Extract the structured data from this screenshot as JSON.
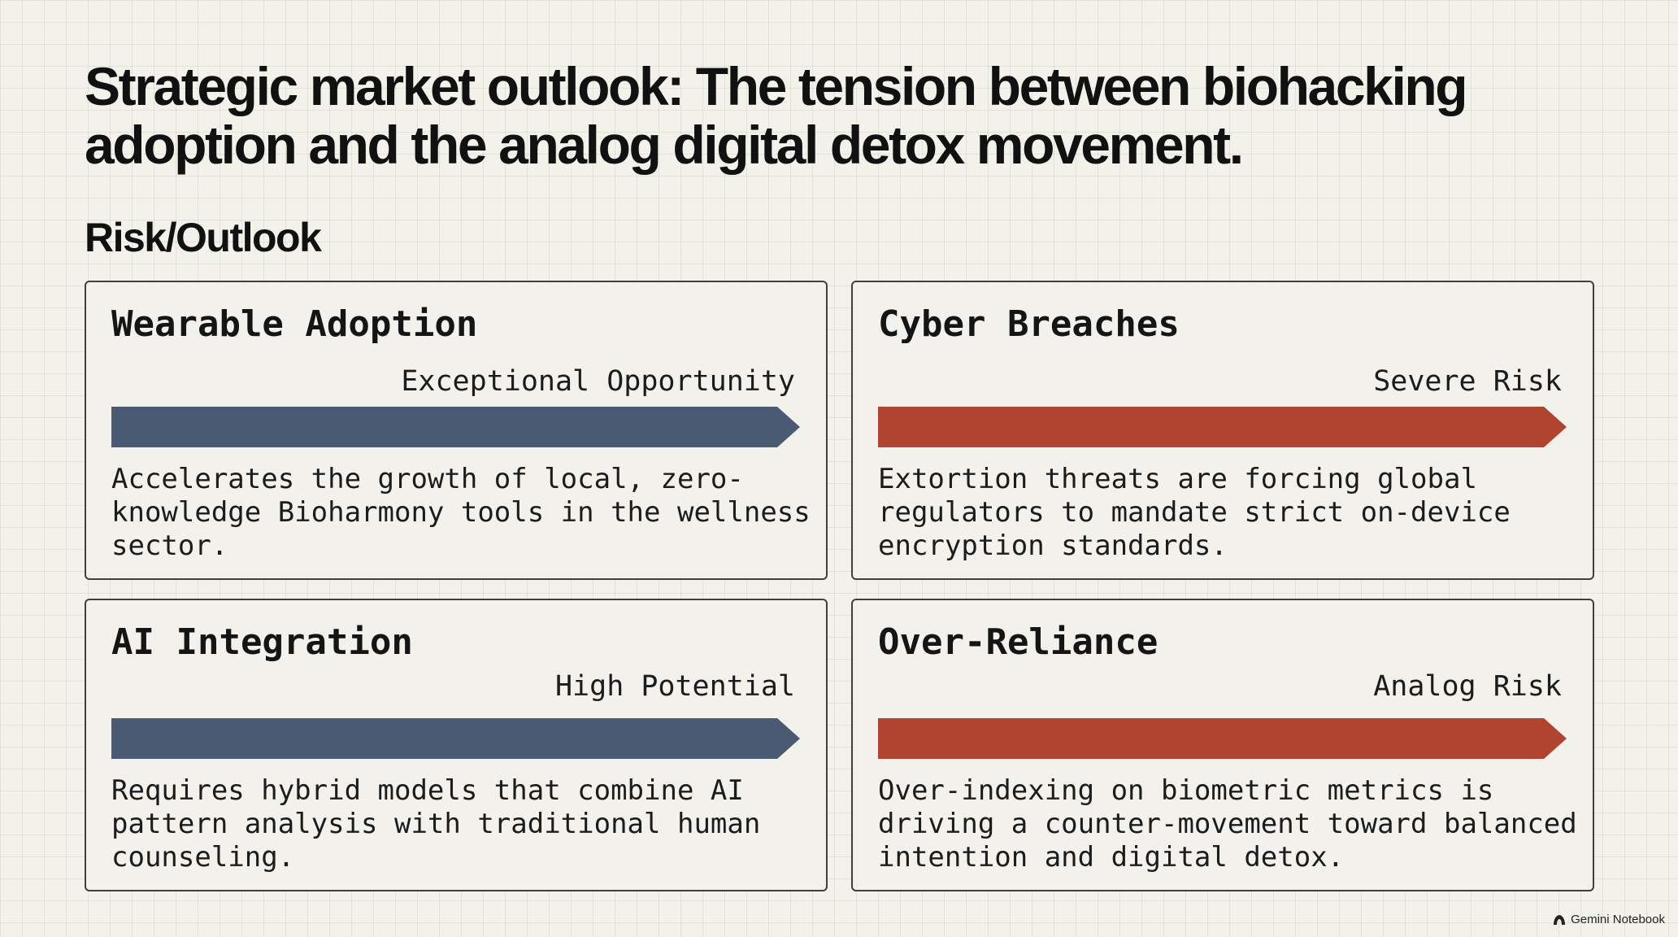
{
  "slide": {
    "title": "Strategic market outlook: The tension between biohacking adoption and the analog digital detox movement.",
    "section_label": "Risk/Outlook"
  },
  "colors": {
    "opportunity_bar": "#4a5a72",
    "risk_bar": "#b04430"
  },
  "cards": [
    {
      "title": "Wearable Adoption",
      "status": "Exceptional Opportunity",
      "level": 1.0,
      "tone": "opportunity",
      "description": "Accelerates the growth of local, zero-knowledge Bioharmony tools in the wellness sector."
    },
    {
      "title": "Cyber Breaches",
      "status": "Severe Risk",
      "level": 1.0,
      "tone": "risk",
      "description": "Extortion threats are forcing global regulators to mandate strict on-device encryption standards."
    },
    {
      "title": "AI Integration",
      "status": "High Potential",
      "level": 1.0,
      "tone": "opportunity",
      "description": "Requires hybrid models that combine AI pattern analysis with traditional human counseling."
    },
    {
      "title": "Over-Reliance",
      "status": "Analog Risk",
      "level": 1.0,
      "tone": "risk",
      "description": "Over-indexing on biometric metrics is driving a counter-movement toward balanced intention and digital detox."
    }
  ],
  "footer": {
    "brand": "Gemini Notebook",
    "icon": "gemini-notebook-logo-icon"
  }
}
